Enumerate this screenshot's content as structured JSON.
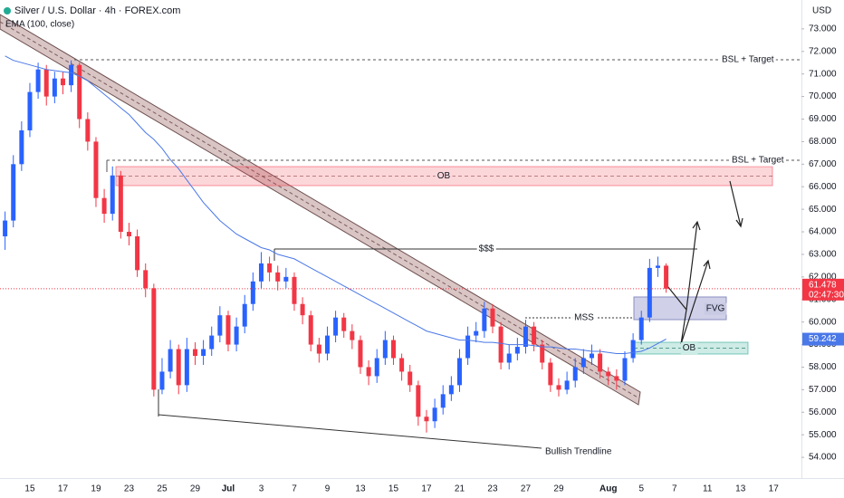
{
  "chart_data": {
    "type": "candlestick",
    "title": "Silver / U.S. Dollar · 4h · FOREX.com",
    "currency": "USD",
    "countdown": "02:47:30",
    "up_color": "#2962ff",
    "down_color": "#f23645",
    "grid": false,
    "categories": [
      null,
      null,
      null,
      "15",
      null,
      null,
      null,
      "17",
      null,
      null,
      null,
      "19",
      null,
      null,
      null,
      "23",
      null,
      null,
      null,
      "25",
      null,
      null,
      null,
      "29",
      null,
      null,
      null,
      "Jul",
      null,
      null,
      null,
      "3",
      null,
      null,
      null,
      "7",
      null,
      null,
      null,
      "9",
      null,
      null,
      null,
      "13",
      null,
      null,
      null,
      "15",
      null,
      null,
      null,
      "17",
      null,
      null,
      null,
      "21",
      null,
      null,
      null,
      "23",
      null,
      null,
      null,
      "27",
      null,
      null,
      null,
      "29",
      null,
      null,
      null,
      null,
      null,
      "Aug",
      null,
      null,
      null,
      "5",
      null,
      null,
      null,
      "7",
      null,
      null,
      null,
      "11",
      null,
      null,
      null,
      "13",
      null,
      null,
      null,
      "17",
      null,
      null
    ],
    "open": [
      63.8,
      64.5,
      67,
      68.5,
      70.2,
      71.2,
      70,
      70.8,
      70.5,
      71.4,
      69,
      68,
      65.5,
      64.8,
      66.5,
      64,
      63.8,
      62.3,
      61.5,
      57,
      57.8,
      58.8,
      57.2,
      58.8,
      58.5,
      58.8,
      59.4,
      60.3,
      59,
      59.8,
      60.8,
      61.8,
      62.6,
      62.2,
      61.8,
      62,
      60.8,
      60.3,
      59,
      58.6,
      59.4,
      60.2,
      59.6,
      59.2,
      58,
      57.6,
      58.4,
      59.2,
      58.4,
      57.8,
      57.2,
      55.8,
      55.6,
      56.2,
      56.8,
      57.2,
      58.4,
      59.4,
      59.6,
      60.6,
      59.8,
      58.2,
      58.6,
      58.9,
      59.8,
      59,
      58.2,
      57.2,
      57,
      57.4,
      58,
      58.4,
      58.6,
      57.8,
      57.6,
      57.4,
      58.4,
      59.2,
      60.2,
      62.4,
      62.5,
      null,
      null,
      null,
      null,
      null,
      null,
      null,
      null,
      null,
      null,
      null,
      null,
      null,
      null,
      null
    ],
    "high": [
      64.9,
      67.4,
      68.9,
      70.6,
      71.5,
      71.4,
      71.1,
      71.1,
      71.6,
      71.5,
      69.3,
      68.2,
      65.9,
      66.9,
      66.7,
      64.4,
      64.1,
      62.6,
      61.7,
      58.4,
      59.2,
      59,
      59.3,
      59.1,
      59.2,
      59.8,
      60.7,
      60.5,
      60.2,
      61.2,
      62.2,
      63.1,
      62.9,
      62.5,
      62.4,
      62.2,
      61.1,
      60.5,
      59.3,
      59.8,
      60.5,
      60.4,
      59.9,
      59.4,
      58.3,
      58.8,
      59.6,
      59.4,
      58.6,
      58.1,
      57.4,
      56.1,
      56.6,
      57.2,
      57.6,
      58.8,
      59.8,
      60,
      60.9,
      60.8,
      60,
      59,
      59.3,
      60.1,
      60,
      59.2,
      58.4,
      57.5,
      57.8,
      58.4,
      58.8,
      59,
      58.8,
      58,
      57.9,
      58.7,
      59.5,
      60.5,
      62.8,
      62.9,
      62.6,
      null,
      null,
      null,
      null,
      null,
      null,
      null,
      null,
      null,
      null,
      null,
      null,
      null,
      null,
      null
    ],
    "low": [
      63.2,
      64.2,
      66.7,
      68.2,
      69.9,
      69.6,
      69.7,
      70.1,
      70.2,
      68.6,
      67.6,
      65.1,
      64.4,
      64.5,
      63.7,
      63.4,
      62,
      61.1,
      56.7,
      56.8,
      57.5,
      56.8,
      56.9,
      58.1,
      58.1,
      58.5,
      59.1,
      58.7,
      58.7,
      59.5,
      60.5,
      61.5,
      61.8,
      61.4,
      61.5,
      60.5,
      59.9,
      58.7,
      58.2,
      58.3,
      59.1,
      59.3,
      58.8,
      57.7,
      57.2,
      57.3,
      58.1,
      58.1,
      57.4,
      56.9,
      55.4,
      55.1,
      55.3,
      55.9,
      56.5,
      56.9,
      58.1,
      59.1,
      59.3,
      59.5,
      57.9,
      57.9,
      58.3,
      58.6,
      58.7,
      57.9,
      56.9,
      56.7,
      56.8,
      57.1,
      57.7,
      58.1,
      57.5,
      57.2,
      57,
      57.2,
      58.2,
      59,
      60,
      62,
      61.3,
      null,
      null,
      null,
      null,
      null,
      null,
      null,
      null,
      null,
      null,
      null,
      null,
      null,
      null,
      null
    ],
    "close": [
      64.5,
      67,
      68.5,
      70.2,
      71.2,
      70,
      70.8,
      70.5,
      71.4,
      69,
      68,
      65.5,
      64.8,
      66.5,
      64,
      63.8,
      62.3,
      61.5,
      57,
      57.8,
      58.8,
      57.2,
      58.8,
      58.5,
      58.8,
      59.4,
      60.3,
      59,
      59.8,
      60.8,
      61.8,
      62.6,
      62.2,
      61.8,
      62,
      60.8,
      60.3,
      59,
      58.6,
      59.4,
      60.2,
      59.6,
      59.2,
      58,
      57.6,
      58.4,
      59.2,
      58.4,
      57.8,
      57.2,
      55.8,
      55.6,
      56.2,
      56.8,
      57.2,
      58.4,
      59.4,
      59.6,
      60.6,
      59.8,
      58.2,
      58.6,
      58.9,
      59.8,
      59,
      58.2,
      57.2,
      57,
      57.4,
      58,
      58.4,
      58.6,
      57.8,
      57.6,
      57.4,
      58.4,
      59.2,
      60.2,
      62.4,
      62.5,
      61.478,
      null,
      null,
      null,
      null,
      null,
      null,
      null,
      null,
      null,
      null,
      null,
      null,
      null,
      null,
      null
    ],
    "ema": {
      "name": "EMA (100, close)",
      "color": "#4a78e8",
      "values": [
        71.8,
        71.6,
        71.5,
        71.4,
        71.3,
        71.2,
        71.15,
        71.1,
        71.05,
        70.9,
        70.7,
        70.4,
        70.1,
        69.8,
        69.5,
        69.2,
        68.8,
        68.4,
        68.1,
        67.7,
        67.2,
        66.8,
        66.3,
        65.8,
        65.3,
        64.9,
        64.5,
        64.2,
        63.9,
        63.7,
        63.5,
        63.3,
        63.2,
        63.0,
        62.9,
        62.8,
        62.6,
        62.4,
        62.2,
        62.0,
        61.8,
        61.6,
        61.4,
        61.2,
        61.0,
        60.8,
        60.6,
        60.4,
        60.2,
        60.0,
        59.8,
        59.6,
        59.5,
        59.4,
        59.3,
        59.2,
        59.2,
        59.15,
        59.1,
        59.1,
        59.05,
        59.0,
        59.0,
        59.0,
        58.95,
        58.9,
        58.9,
        58.85,
        58.8,
        58.8,
        58.75,
        58.7,
        58.7,
        58.65,
        58.6,
        58.6,
        58.65,
        58.7,
        58.85,
        59.05,
        59.242,
        null,
        null,
        null,
        null,
        null,
        null,
        null,
        null,
        null,
        null,
        null,
        null,
        null,
        null,
        null
      ]
    },
    "ylim": [
      53.0,
      74.28
    ],
    "yticks": [
      {
        "value": 54,
        "label": "54.000"
      },
      {
        "value": 55,
        "label": "55.000"
      },
      {
        "value": 56,
        "label": "56.000"
      },
      {
        "value": 57,
        "label": "57.000"
      },
      {
        "value": 58,
        "label": "58.000"
      },
      {
        "value": 59,
        "label": "59.000"
      },
      {
        "value": 60,
        "label": "60.000"
      },
      {
        "value": 61,
        "label": "61.000"
      },
      {
        "value": 62,
        "label": "62.000"
      },
      {
        "value": 63,
        "label": "63.000"
      },
      {
        "value": 64,
        "label": "64.000"
      },
      {
        "value": 65,
        "label": "65.000"
      },
      {
        "value": 66,
        "label": "66.000"
      },
      {
        "value": 67,
        "label": "67.000"
      },
      {
        "value": 68,
        "label": "68.000"
      },
      {
        "value": 69,
        "label": "69.000"
      },
      {
        "value": 70,
        "label": "70.000"
      },
      {
        "value": 71,
        "label": "71.000"
      },
      {
        "value": 72,
        "label": "72.000"
      },
      {
        "value": 73,
        "label": "73.000"
      }
    ],
    "annotations": [
      "BSL + Target",
      "BSL + Target",
      "OB",
      "$$$",
      "MSS",
      "FVG",
      "OB",
      "Bullish Trendline"
    ]
  }
}
